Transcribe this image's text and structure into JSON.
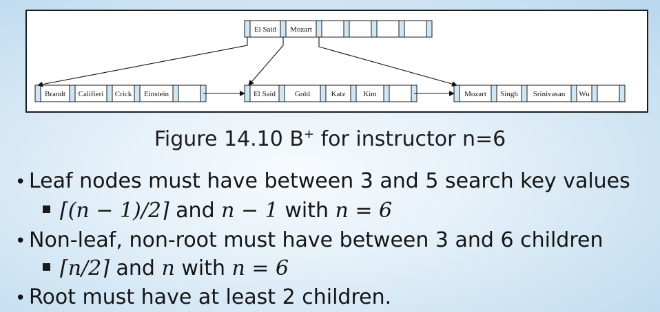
{
  "figure": {
    "root_keys": [
      "El Said",
      "Mozart",
      "",
      "",
      "",
      ""
    ],
    "leaves": [
      {
        "keys": [
          "Brandt",
          "Califieri",
          "Crick",
          "Einstein",
          ""
        ]
      },
      {
        "keys": [
          "El Said",
          "Gold",
          "Katz",
          "Kim",
          ""
        ]
      },
      {
        "keys": [
          "Mozart",
          "Singh",
          "Srinivasan",
          "Wu",
          ""
        ]
      }
    ]
  },
  "caption": {
    "prefix": "Figure 14.10 B",
    "superscript": "+",
    "suffix": " for instructor n=6"
  },
  "bullets": [
    {
      "text": "Leaf nodes must have between 3 and 5 search key values",
      "sub": {
        "math1": "⌈(n − 1)/2⌉",
        "mid": " and ",
        "math2": "n − 1",
        "mid2": " with ",
        "math3": "n = 6"
      }
    },
    {
      "text": "Non-leaf, non-root must have between 3 and 6 children",
      "sub": {
        "math1": "⌈n/2⌉",
        "mid": " and ",
        "math2": "n",
        "mid2": " with ",
        "math3": "n = 6"
      }
    },
    {
      "text": "Root must have at least 2 children."
    }
  ]
}
